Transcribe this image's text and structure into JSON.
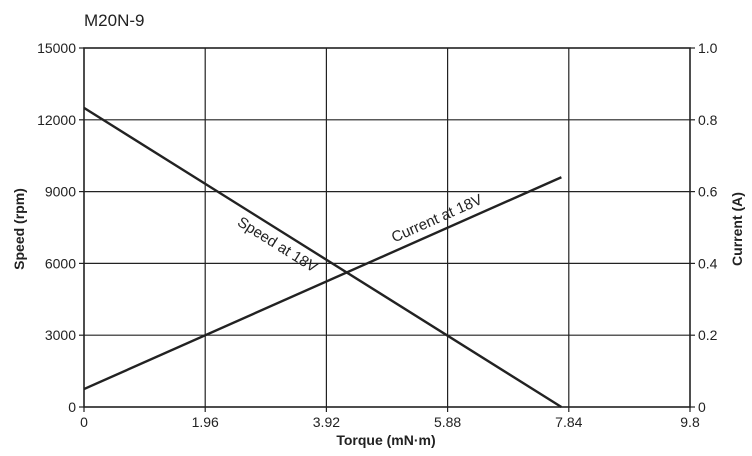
{
  "chart_data": {
    "type": "line",
    "title": "M20N-9",
    "xlabel": "Torque (mN·m)",
    "ylabel_left": "Speed (rpm)",
    "ylabel_right": "Current (A)",
    "x_ticks": [
      "0",
      "1.96",
      "3.92",
      "5.88",
      "7.84",
      "9.8"
    ],
    "x_tick_values": [
      0,
      1.96,
      3.92,
      5.88,
      7.84,
      9.8
    ],
    "xlim": [
      0,
      9.8
    ],
    "y_left_ticks": [
      "0",
      "3000",
      "6000",
      "9000",
      "12000",
      "15000"
    ],
    "y_left_tick_values": [
      0,
      3000,
      6000,
      9000,
      12000,
      15000
    ],
    "ylim_left": [
      0,
      15000
    ],
    "y_right_ticks": [
      "0",
      "0.2",
      "0.4",
      "0.6",
      "0.8",
      "1.0"
    ],
    "y_right_tick_values": [
      0,
      0.2,
      0.4,
      0.6,
      0.8,
      1.0
    ],
    "ylim_right": [
      0,
      1.0
    ],
    "grid": true,
    "series": [
      {
        "name": "Speed at 18V",
        "axis": "left",
        "x": [
          0,
          7.72
        ],
        "y": [
          12500,
          0
        ]
      },
      {
        "name": "Current at 18V",
        "axis": "right",
        "x": [
          0,
          7.72
        ],
        "y": [
          0.05,
          0.64
        ]
      }
    ],
    "colors": {
      "line": "#222222",
      "grid": "#222222"
    }
  }
}
